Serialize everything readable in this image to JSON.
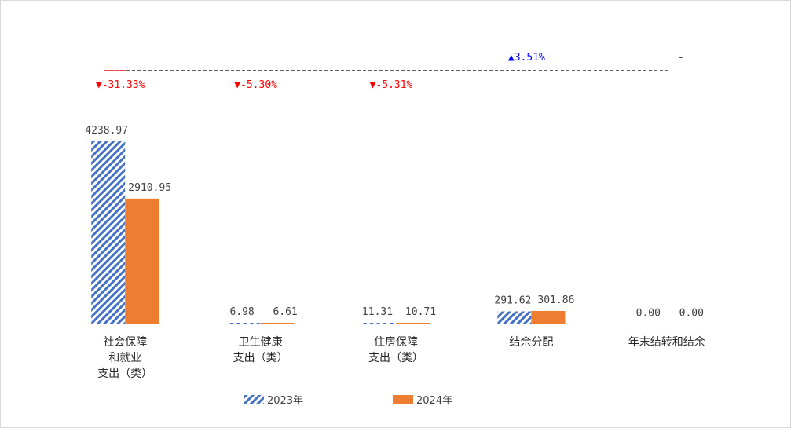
{
  "chart_data": {
    "type": "bar",
    "categories": [
      [
        "社会保障",
        "和就业",
        "支出（类）"
      ],
      [
        "卫生健康",
        "支出（类）"
      ],
      [
        "住房保障",
        "支出（类）"
      ],
      [
        "结余分配"
      ],
      [
        "年末结转和结余"
      ]
    ],
    "series": [
      {
        "name": "2023年",
        "values": [
          4238.97,
          6.98,
          11.31,
          291.62,
          0.0
        ],
        "labels": [
          "4238.97",
          "6.98",
          "11.31",
          "291.62",
          "0.00"
        ],
        "color": "#4472c4",
        "pattern": "diagonal-hatch"
      },
      {
        "name": "2024年",
        "values": [
          2910.95,
          6.61,
          10.71,
          301.86,
          0.0
        ],
        "labels": [
          "2910.95",
          "6.61",
          "10.71",
          "301.86",
          "0.00"
        ],
        "color": "#ed7d31",
        "pattern": "solid"
      }
    ],
    "changes": [
      {
        "text": "▼-31.33%",
        "direction": "down",
        "color": "#ff0000"
      },
      {
        "text": "▼-5.30%",
        "direction": "down",
        "color": "#ff0000"
      },
      {
        "text": "▼-5.31%",
        "direction": "down",
        "color": "#ff0000"
      },
      {
        "text": "▲3.51%",
        "direction": "up",
        "color": "#0000ff"
      },
      {
        "text": "-",
        "direction": "none",
        "color": "#404040"
      }
    ],
    "ylim": [
      0,
      4400
    ],
    "grid": false,
    "legend_position": "bottom"
  }
}
